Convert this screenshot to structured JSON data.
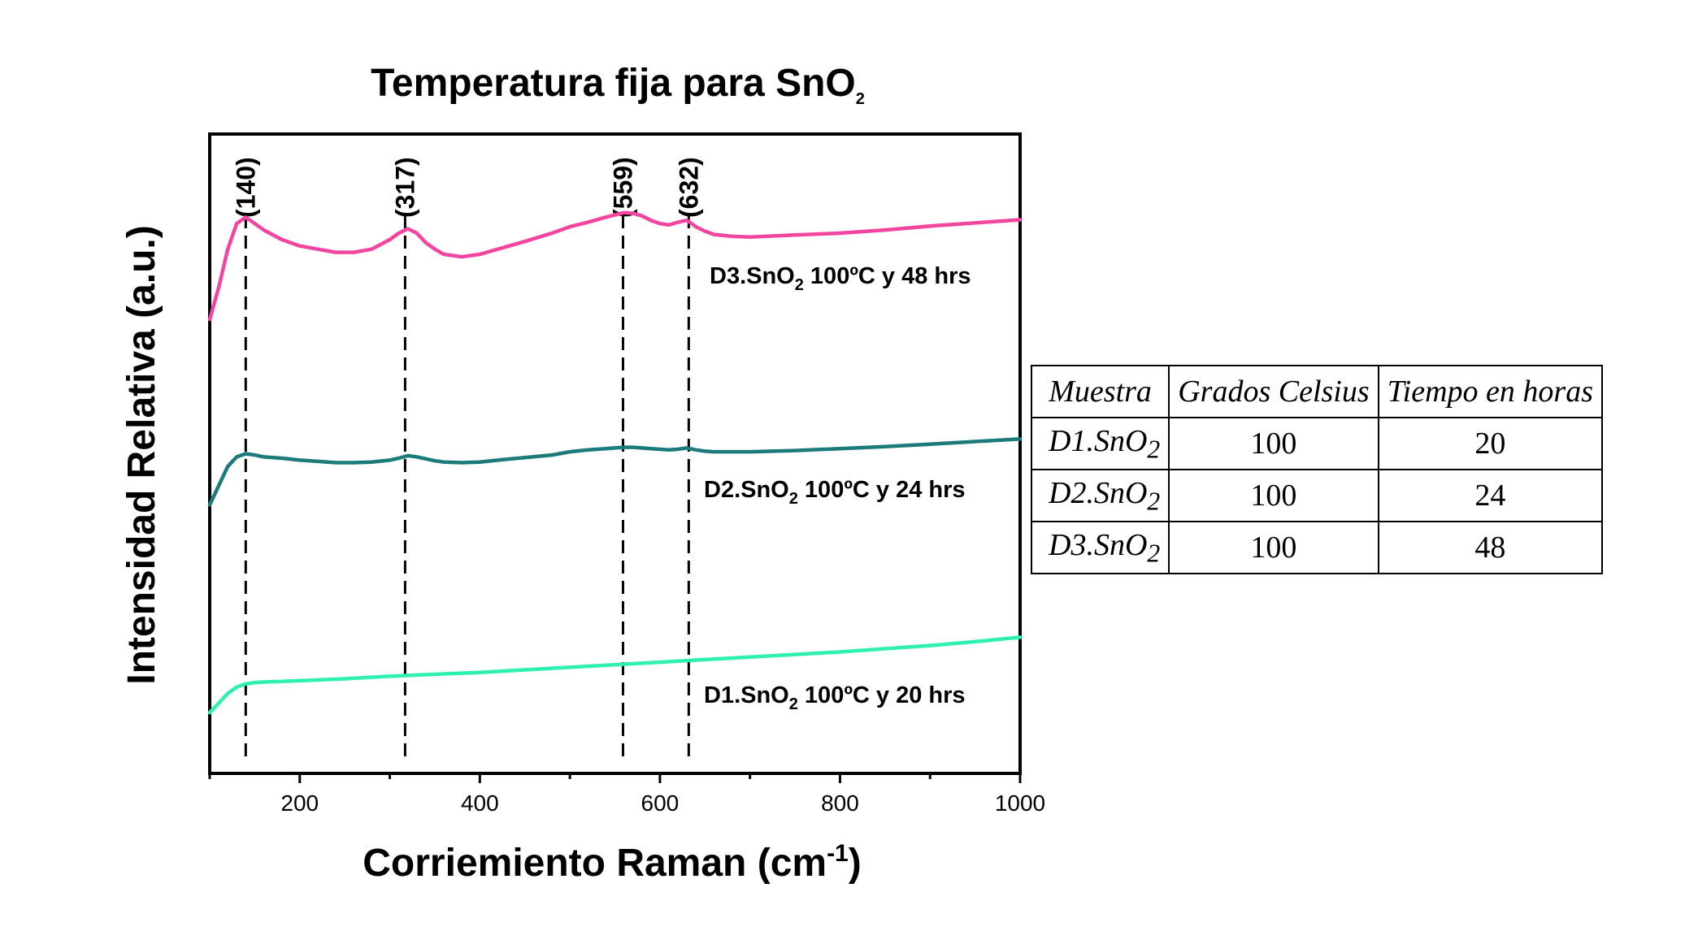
{
  "chart_data": {
    "type": "line",
    "title": "Temperatura fija para SnO",
    "title_sub": "2",
    "xlabel": "Corriemiento Raman (cm",
    "xlabel_sup": "-1",
    "xlabel_end": ")",
    "ylabel": "Intensidad Relativa (a.u.)",
    "xlim": [
      100,
      1000
    ],
    "ylim": [
      0,
      1
    ],
    "x_ticks": [
      200,
      400,
      600,
      800,
      1000
    ],
    "y_ticks": [],
    "grid": false,
    "peaks": [
      {
        "x": 140,
        "label": "(140)"
      },
      {
        "x": 317,
        "label": "(317)"
      },
      {
        "x": 559,
        "label": "(559)"
      },
      {
        "x": 632,
        "label": "(632)"
      }
    ],
    "series": [
      {
        "name": "D3.SnO2 100ºC y 48 hrs",
        "label_pre": "D3.SnO",
        "label_sub": "2",
        "label_post": " 100ºC y 48 hrs",
        "color": "#f2459f",
        "x": [
          100,
          110,
          120,
          130,
          140,
          150,
          160,
          180,
          200,
          220,
          240,
          260,
          280,
          300,
          310,
          320,
          330,
          340,
          350,
          360,
          380,
          400,
          420,
          450,
          480,
          500,
          520,
          540,
          560,
          570,
          580,
          590,
          600,
          610,
          620,
          630,
          640,
          650,
          660,
          680,
          700,
          750,
          800,
          850,
          900,
          950,
          1000
        ],
        "values": [
          0.71,
          0.76,
          0.82,
          0.86,
          0.87,
          0.86,
          0.85,
          0.835,
          0.825,
          0.82,
          0.815,
          0.815,
          0.82,
          0.835,
          0.845,
          0.852,
          0.845,
          0.83,
          0.82,
          0.812,
          0.808,
          0.812,
          0.82,
          0.832,
          0.845,
          0.855,
          0.862,
          0.87,
          0.877,
          0.876,
          0.872,
          0.865,
          0.86,
          0.858,
          0.862,
          0.865,
          0.855,
          0.848,
          0.843,
          0.84,
          0.839,
          0.842,
          0.845,
          0.85,
          0.856,
          0.861,
          0.866
        ]
      },
      {
        "name": "D2.SnO2 100ºC y 24 hrs",
        "label_pre": "D2.SnO",
        "label_sub": "2",
        "label_post": " 100ºC y 24 hrs",
        "color": "#1b7a7a",
        "x": [
          100,
          110,
          120,
          130,
          140,
          150,
          160,
          180,
          200,
          220,
          240,
          260,
          280,
          300,
          310,
          320,
          330,
          340,
          350,
          360,
          380,
          400,
          420,
          450,
          480,
          500,
          520,
          540,
          560,
          570,
          580,
          590,
          600,
          610,
          620,
          630,
          640,
          650,
          660,
          680,
          700,
          750,
          800,
          850,
          900,
          950,
          1000
        ],
        "values": [
          0.42,
          0.45,
          0.48,
          0.495,
          0.5,
          0.498,
          0.495,
          0.493,
          0.49,
          0.488,
          0.486,
          0.486,
          0.487,
          0.49,
          0.493,
          0.497,
          0.495,
          0.492,
          0.489,
          0.487,
          0.486,
          0.487,
          0.49,
          0.494,
          0.498,
          0.503,
          0.506,
          0.508,
          0.51,
          0.51,
          0.509,
          0.508,
          0.507,
          0.506,
          0.507,
          0.509,
          0.506,
          0.504,
          0.503,
          0.503,
          0.503,
          0.505,
          0.508,
          0.511,
          0.515,
          0.519,
          0.523
        ]
      },
      {
        "name": "D1.SnO2 100ºC y 20 hrs",
        "label_pre": "D1.SnO",
        "label_sub": "2",
        "label_post": " 100ºC y 20 hrs",
        "color": "#2ff0b0",
        "x": [
          100,
          110,
          120,
          130,
          140,
          150,
          160,
          180,
          200,
          250,
          300,
          350,
          400,
          450,
          500,
          550,
          600,
          650,
          700,
          750,
          800,
          850,
          900,
          950,
          1000
        ],
        "values": [
          0.095,
          0.11,
          0.125,
          0.135,
          0.14,
          0.142,
          0.143,
          0.144,
          0.145,
          0.148,
          0.152,
          0.155,
          0.158,
          0.162,
          0.166,
          0.17,
          0.174,
          0.178,
          0.182,
          0.186,
          0.19,
          0.195,
          0.2,
          0.206,
          0.213
        ]
      }
    ]
  },
  "table": {
    "headers": [
      "Muestra",
      "Grados Celsius",
      "Tiempo en horas"
    ],
    "rows": [
      {
        "sample": "D1.SnO",
        "sub": "2",
        "celsius": "100",
        "hours": "20"
      },
      {
        "sample": "D2.SnO",
        "sub": "2",
        "celsius": "100",
        "hours": "24"
      },
      {
        "sample": "D3.SnO",
        "sub": "2",
        "celsius": "100",
        "hours": "48"
      }
    ]
  }
}
